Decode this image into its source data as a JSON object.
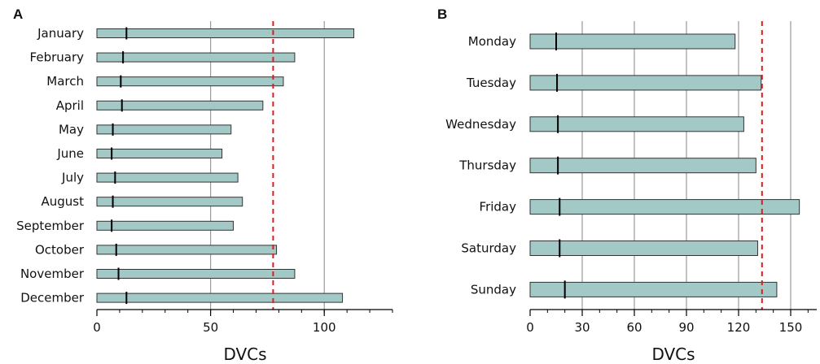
{
  "colors": {
    "bar_fill": "#a3c9c7",
    "bar_stroke": "#333333",
    "marker": "#000000",
    "threshold": "#e01b1b",
    "grid": "#9a9a9a"
  },
  "chart_data": [
    {
      "type": "bar",
      "orientation": "horizontal",
      "panel": "A",
      "xlabel": "DVCs",
      "xlim": [
        0,
        130
      ],
      "xticks": [
        "0",
        "50",
        "100"
      ],
      "xtick_values": [
        0,
        50,
        100
      ],
      "minor_tick_step": 10,
      "grid": "vertical lines at 50 and 100",
      "categories": [
        "January",
        "February",
        "March",
        "April",
        "May",
        "June",
        "July",
        "August",
        "September",
        "October",
        "November",
        "December"
      ],
      "values": [
        113,
        87,
        82,
        73,
        59,
        55,
        62,
        64,
        60,
        79,
        87,
        108
      ],
      "marker_values": [
        13,
        11.5,
        10.5,
        11,
        7,
        6.5,
        8,
        7,
        6.5,
        8.5,
        9.5,
        13
      ],
      "threshold": 77.5
    },
    {
      "type": "bar",
      "orientation": "horizontal",
      "panel": "B",
      "xlabel": "DVCs",
      "xlim": [
        0,
        165
      ],
      "xticks": [
        "0",
        "30",
        "60",
        "90",
        "120",
        "150"
      ],
      "xtick_values": [
        0,
        30,
        60,
        90,
        120,
        150
      ],
      "minor_tick_step": 10,
      "grid": "vertical lines at 30, 60, 90, 120, 150",
      "categories": [
        "Monday",
        "Tuesday",
        "Wednesday",
        "Thursday",
        "Friday",
        "Saturday",
        "Sunday"
      ],
      "values": [
        118,
        133,
        123,
        130,
        155,
        131,
        142
      ],
      "marker_values": [
        15,
        15.5,
        16,
        16,
        17,
        17,
        20
      ],
      "threshold": 133.5
    }
  ]
}
